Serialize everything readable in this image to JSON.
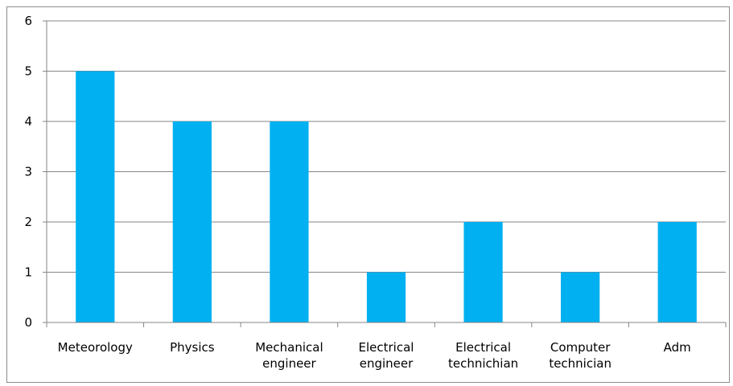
{
  "chart_data": {
    "type": "bar",
    "categories": [
      [
        "Meteorology"
      ],
      [
        "Physics"
      ],
      [
        "Mechanical",
        "engineer"
      ],
      [
        "Electrical",
        "engineer"
      ],
      [
        "Electrical",
        "technichian"
      ],
      [
        "Computer",
        "technician"
      ],
      [
        "Adm"
      ]
    ],
    "values": [
      5,
      4,
      4,
      1,
      2,
      1,
      2
    ],
    "title": "",
    "xlabel": "",
    "ylabel": "",
    "ylim": [
      0,
      6
    ],
    "yticks": [
      0,
      1,
      2,
      3,
      4,
      5,
      6
    ],
    "grid": true,
    "legend": "none",
    "bar_color": "#00b0f0",
    "grid_color": "#868686",
    "axis_color": "#868686"
  }
}
